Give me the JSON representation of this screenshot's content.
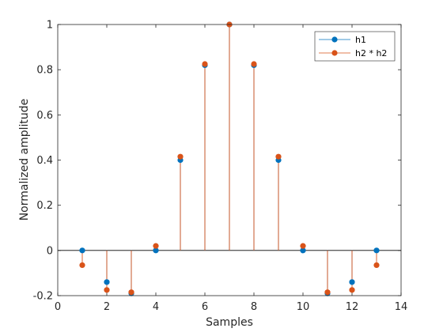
{
  "chart_data": {
    "type": "stem",
    "xlabel": "Samples",
    "ylabel": "Normalized amplitude",
    "xlim": [
      0,
      14
    ],
    "ylim": [
      -0.2,
      1
    ],
    "xticks": [
      0,
      2,
      4,
      6,
      8,
      10,
      12,
      14
    ],
    "yticks": [
      -0.2,
      0,
      0.2,
      0.4,
      0.6,
      0.8,
      1
    ],
    "xtick_labels": [
      "0",
      "2",
      "4",
      "6",
      "8",
      "10",
      "12",
      "14"
    ],
    "ytick_labels": [
      "-0.2",
      "0",
      "0.2",
      "0.4",
      "0.6",
      "0.8",
      "1"
    ],
    "grid": false,
    "legend_position": "top-right",
    "series": [
      {
        "name": "h1",
        "color": "#0072BD",
        "x": [
          1,
          2,
          3,
          4,
          5,
          6,
          7,
          8,
          9,
          10,
          11,
          12,
          13
        ],
        "values": [
          0,
          -0.14,
          -0.19,
          0,
          0.4,
          0.82,
          1.0,
          0.82,
          0.4,
          0,
          -0.19,
          -0.14,
          0
        ]
      },
      {
        "name": "h2 * h2",
        "color": "#D95319",
        "x": [
          1,
          2,
          3,
          4,
          5,
          6,
          7,
          8,
          9,
          10,
          11,
          12,
          13
        ],
        "values": [
          -0.065,
          -0.175,
          -0.185,
          0.02,
          0.415,
          0.825,
          1.0,
          0.825,
          0.415,
          0.02,
          -0.185,
          -0.175,
          -0.065
        ]
      }
    ]
  }
}
